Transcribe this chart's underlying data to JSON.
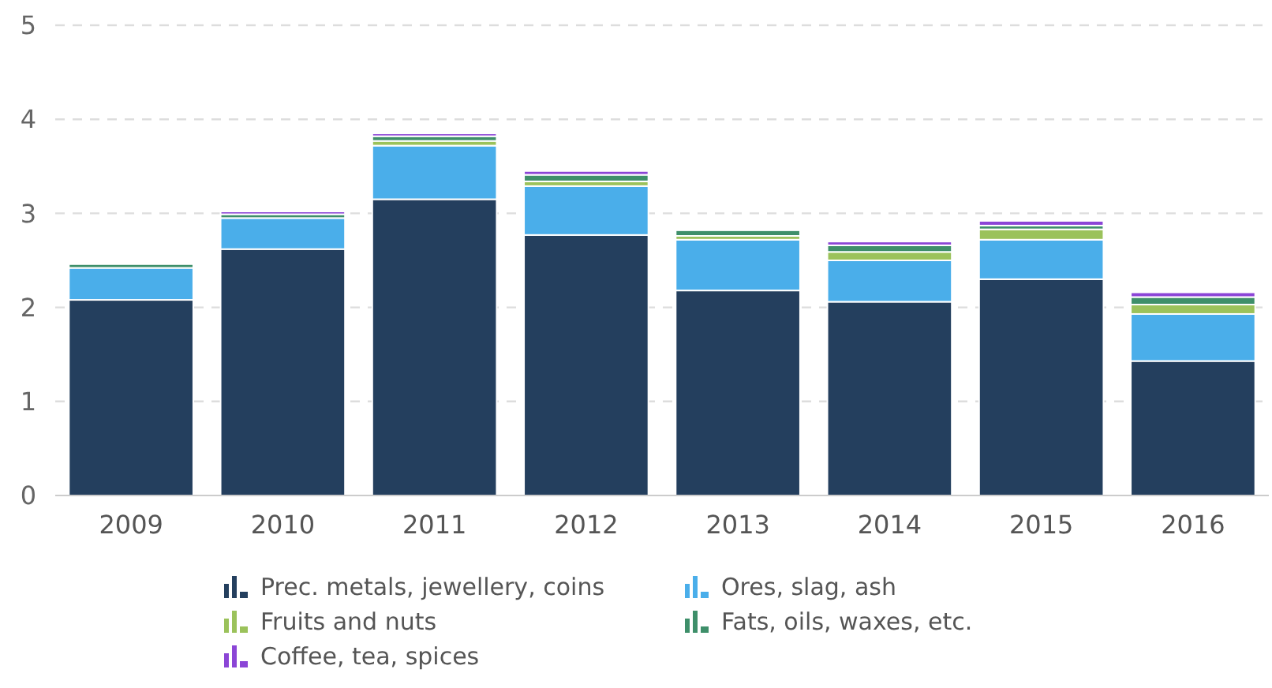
{
  "chart_data": {
    "type": "bar",
    "stacked": true,
    "categories": [
      "2009",
      "2010",
      "2011",
      "2012",
      "2013",
      "2014",
      "2015",
      "2016"
    ],
    "series": [
      {
        "name": "Prec. metals, jewellery, coins",
        "color": "#243f5e",
        "values": [
          2.08,
          2.62,
          3.15,
          2.77,
          2.18,
          2.06,
          2.3,
          1.43
        ]
      },
      {
        "name": "Ores, slag, ash",
        "color": "#4aaeea",
        "values": [
          0.34,
          0.33,
          0.57,
          0.52,
          0.54,
          0.44,
          0.42,
          0.5
        ]
      },
      {
        "name": "Fruits and nuts",
        "color": "#9bc25b",
        "values": [
          null,
          null,
          0.05,
          0.05,
          0.04,
          0.09,
          0.11,
          0.1
        ]
      },
      {
        "name": "Fats, oils, waxes, etc.",
        "color": "#3e8f6a",
        "values": [
          0.04,
          0.04,
          0.05,
          0.07,
          0.06,
          0.07,
          0.04,
          0.08
        ]
      },
      {
        "name": "Coffee, tea, spices",
        "color": "#8b45d6",
        "values": [
          0,
          0.03,
          0.03,
          0.04,
          0,
          0.04,
          0.05,
          0.05
        ]
      }
    ],
    "ylim": [
      0,
      5
    ],
    "yticks": [
      0,
      1,
      2,
      3,
      4,
      5
    ],
    "grid": "y",
    "legend": "bottom"
  }
}
